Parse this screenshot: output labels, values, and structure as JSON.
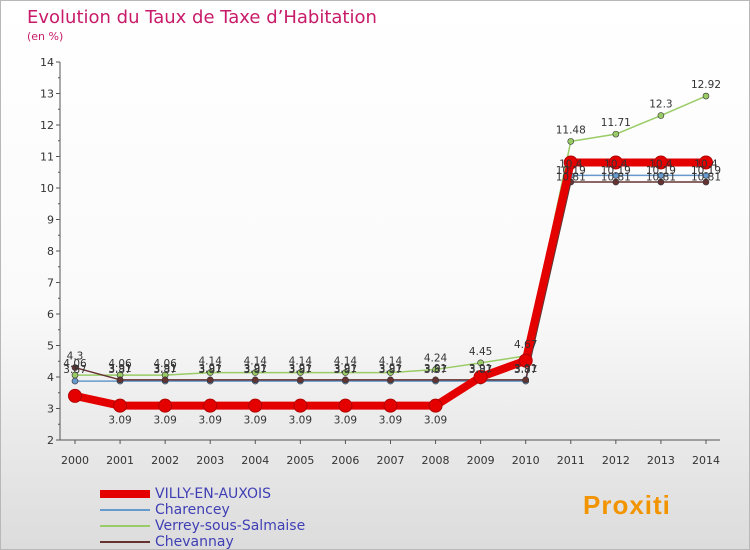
{
  "title": "Evolution du Taux de Taxe d’Habitation",
  "unit_label": "(en %)",
  "brand": {
    "label": "Proxiti"
  },
  "chart_data": {
    "type": "line",
    "title": "Evolution du Taux de Taxe d’Habitation",
    "ylabel": "(en %)",
    "xlabel": "",
    "ylim": [
      2,
      14
    ],
    "yticks": [
      2,
      3,
      4,
      5,
      6,
      7,
      8,
      9,
      10,
      11,
      12,
      13,
      14
    ],
    "categories": [
      "2000",
      "2001",
      "2002",
      "2003",
      "2004",
      "2005",
      "2006",
      "2007",
      "2008",
      "2009",
      "2010",
      "2011",
      "2012",
      "2013",
      "2014"
    ],
    "grid": false,
    "legend_position": "bottom-left",
    "series": [
      {
        "name": "Charencey",
        "color": "#6699cc",
        "values": [
          3.87,
          3.87,
          3.87,
          3.87,
          3.87,
          3.87,
          3.87,
          3.87,
          3.87,
          3.87,
          3.87,
          10.4,
          10.4,
          10.4,
          10.4
        ],
        "labels": [
          "3.87",
          "3.87",
          "3.87",
          "3.87",
          "3.87",
          "3.87",
          "3.87",
          "3.87",
          "3.87",
          "3.87",
          "3.87",
          "10.4",
          "10.4",
          "10.4",
          "10.4"
        ]
      },
      {
        "name": "Verrey-sous-Salmaise",
        "color": "#99cc66",
        "values": [
          4.06,
          4.06,
          4.06,
          4.14,
          4.14,
          4.14,
          4.14,
          4.14,
          4.24,
          4.45,
          4.67,
          11.48,
          11.71,
          12.3,
          12.92
        ],
        "labels": [
          "4.06",
          "4.06",
          "4.06",
          "4.14",
          "4.14",
          "4.14",
          "4.14",
          "4.14",
          "4.24",
          "4.45",
          "4.67",
          "11.48",
          "11.71",
          "12.3",
          "12.92"
        ]
      },
      {
        "name": "Chevannay",
        "color": "#663333",
        "values": [
          4.3,
          3.91,
          3.91,
          3.91,
          3.91,
          3.91,
          3.91,
          3.91,
          3.91,
          3.91,
          3.91,
          10.19,
          10.19,
          10.19,
          10.19
        ],
        "labels": [
          "4.3",
          "3.91",
          "3.91",
          "3.91",
          "3.91",
          "3.91",
          "3.91",
          "3.91",
          "3.91",
          "3.91",
          "3.91",
          "10.19",
          "10.19",
          "10.19",
          "10.19"
        ]
      },
      {
        "name": "VILLY-EN-AUXOIS",
        "color": "#e50000",
        "values": [
          3.4,
          3.09,
          3.09,
          3.09,
          3.09,
          3.09,
          3.09,
          3.09,
          3.09,
          4.0,
          4.52,
          10.81,
          10.81,
          10.81,
          10.81
        ],
        "labels": [
          "",
          "3.09",
          "3.09",
          "3.09",
          "3.09",
          "3.09",
          "3.09",
          "3.09",
          "3.09",
          "",
          "",
          "10.81",
          "10.81",
          "10.81",
          "10.81"
        ]
      }
    ]
  },
  "legend": [
    {
      "label": "VILLY-EN-AUXOIS",
      "color": "#e50000"
    },
    {
      "label": "Charencey",
      "color": "#6699cc"
    },
    {
      "label": "Verrey-sous-Salmaise",
      "color": "#99cc66"
    },
    {
      "label": "Chevannay",
      "color": "#663333"
    }
  ]
}
